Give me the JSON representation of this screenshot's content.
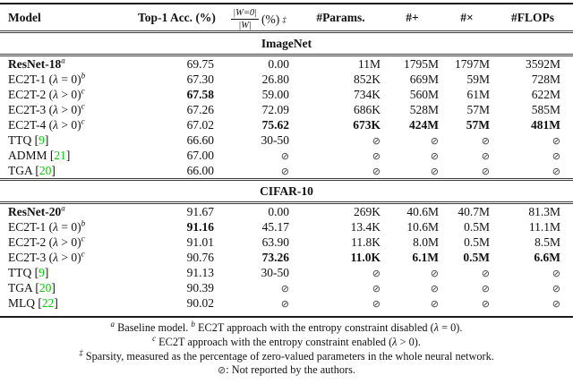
{
  "colors": {
    "citation_green": "#00CC00",
    "text": "#111111"
  },
  "not_reported_symbol": "⊘",
  "header": {
    "columns": [
      {
        "key": "model",
        "segs": [
          {
            "t": "Model",
            "b": 1
          }
        ]
      },
      {
        "key": "top1",
        "segs": [
          {
            "t": "Top-1 Acc.",
            "b": 1
          },
          {
            "t": " (%)"
          }
        ]
      },
      {
        "key": "sparsity",
        "type": "frac",
        "num": "|W=0|",
        "den": "|W|",
        "suffix": "(%)",
        "sup": "‡"
      },
      {
        "key": "params",
        "segs": [
          {
            "t": "#Params.",
            "b": 1
          }
        ]
      },
      {
        "key": "adds",
        "segs": [
          {
            "t": "#+"
          }
        ]
      },
      {
        "key": "mults",
        "segs": [
          {
            "t": "#×"
          }
        ]
      },
      {
        "key": "flops",
        "segs": [
          {
            "t": "#FLOPs",
            "b": 1
          }
        ]
      }
    ]
  },
  "sections": [
    {
      "title": "ImageNet",
      "rows": [
        {
          "model": [
            {
              "t": "ResNet-18",
              "b": 1
            },
            {
              "t": "a",
              "sup": 1
            }
          ],
          "values": [
            {
              "v": "69.75"
            },
            {
              "v": "0.00"
            },
            {
              "v": "11M"
            },
            {
              "v": "1795M"
            },
            {
              "v": "1797M"
            },
            {
              "v": "3592M"
            }
          ]
        },
        {
          "model": [
            {
              "t": "EC2T-1 ("
            },
            {
              "t": "λ",
              "i": 1
            },
            {
              "t": " = 0)"
            },
            {
              "t": "b",
              "sup": 1
            }
          ],
          "values": [
            {
              "v": "67.30"
            },
            {
              "v": "26.80"
            },
            {
              "v": "852K"
            },
            {
              "v": "669M"
            },
            {
              "v": "59M"
            },
            {
              "v": "728M"
            }
          ]
        },
        {
          "model": [
            {
              "t": "EC2T-2 ("
            },
            {
              "t": "λ",
              "i": 1
            },
            {
              "t": " > 0)"
            },
            {
              "t": "c",
              "sup": 1
            }
          ],
          "values": [
            {
              "v": "67.58",
              "b": 1
            },
            {
              "v": "59.00"
            },
            {
              "v": "734K"
            },
            {
              "v": "560M"
            },
            {
              "v": "61M"
            },
            {
              "v": "622M"
            }
          ]
        },
        {
          "model": [
            {
              "t": "EC2T-3 ("
            },
            {
              "t": "λ",
              "i": 1
            },
            {
              "t": " > 0)"
            },
            {
              "t": "c",
              "sup": 1
            }
          ],
          "values": [
            {
              "v": "67.26"
            },
            {
              "v": "72.09"
            },
            {
              "v": "686K"
            },
            {
              "v": "528M"
            },
            {
              "v": "57M"
            },
            {
              "v": "585M"
            }
          ]
        },
        {
          "model": [
            {
              "t": "EC2T-4 ("
            },
            {
              "t": "λ",
              "i": 1
            },
            {
              "t": " > 0)"
            },
            {
              "t": "c",
              "sup": 1
            }
          ],
          "values": [
            {
              "v": "67.02"
            },
            {
              "v": "75.62",
              "b": 1
            },
            {
              "v": "673K",
              "b": 1
            },
            {
              "v": "424M",
              "b": 1
            },
            {
              "v": "57M",
              "b": 1
            },
            {
              "v": "481M",
              "b": 1
            }
          ]
        },
        {
          "model": [
            {
              "t": "TTQ ["
            },
            {
              "t": "9",
              "c": 1
            },
            {
              "t": "]"
            }
          ],
          "values": [
            {
              "v": "66.60"
            },
            {
              "v": "30-50"
            },
            {
              "v": "⊘"
            },
            {
              "v": "⊘"
            },
            {
              "v": "⊘"
            },
            {
              "v": "⊘"
            }
          ]
        },
        {
          "model": [
            {
              "t": "ADMM ["
            },
            {
              "t": "21",
              "c": 1
            },
            {
              "t": "]"
            }
          ],
          "values": [
            {
              "v": "67.00"
            },
            {
              "v": "⊘"
            },
            {
              "v": "⊘"
            },
            {
              "v": "⊘"
            },
            {
              "v": "⊘"
            },
            {
              "v": "⊘"
            }
          ]
        },
        {
          "model": [
            {
              "t": "TGA ["
            },
            {
              "t": "20",
              "c": 1
            },
            {
              "t": "]"
            }
          ],
          "values": [
            {
              "v": "66.00"
            },
            {
              "v": "⊘"
            },
            {
              "v": "⊘"
            },
            {
              "v": "⊘"
            },
            {
              "v": "⊘"
            },
            {
              "v": "⊘"
            }
          ]
        }
      ]
    },
    {
      "title": "CIFAR-10",
      "rows": [
        {
          "model": [
            {
              "t": "ResNet-20",
              "b": 1
            },
            {
              "t": "a",
              "sup": 1
            }
          ],
          "values": [
            {
              "v": "91.67"
            },
            {
              "v": "0.00"
            },
            {
              "v": "269K"
            },
            {
              "v": "40.6M"
            },
            {
              "v": "40.7M"
            },
            {
              "v": "81.3M"
            }
          ]
        },
        {
          "model": [
            {
              "t": "EC2T-1 ("
            },
            {
              "t": "λ",
              "i": 1
            },
            {
              "t": " = 0)"
            },
            {
              "t": "b",
              "sup": 1
            }
          ],
          "values": [
            {
              "v": "91.16",
              "b": 1
            },
            {
              "v": "45.17"
            },
            {
              "v": "13.4K"
            },
            {
              "v": "10.6M"
            },
            {
              "v": "0.5M"
            },
            {
              "v": "11.1M"
            }
          ]
        },
        {
          "model": [
            {
              "t": "EC2T-2 ("
            },
            {
              "t": "λ",
              "i": 1
            },
            {
              "t": " > 0)"
            },
            {
              "t": "c",
              "sup": 1
            }
          ],
          "values": [
            {
              "v": "91.01"
            },
            {
              "v": "63.90"
            },
            {
              "v": "11.8K"
            },
            {
              "v": "8.0M"
            },
            {
              "v": "0.5M"
            },
            {
              "v": "8.5M"
            }
          ]
        },
        {
          "model": [
            {
              "t": "EC2T-3 ("
            },
            {
              "t": "λ",
              "i": 1
            },
            {
              "t": " > 0)"
            },
            {
              "t": "c",
              "sup": 1
            }
          ],
          "values": [
            {
              "v": "90.76"
            },
            {
              "v": "73.26",
              "b": 1
            },
            {
              "v": "11.0K",
              "b": 1
            },
            {
              "v": "6.1M",
              "b": 1
            },
            {
              "v": "0.5M",
              "b": 1
            },
            {
              "v": "6.6M",
              "b": 1
            }
          ]
        },
        {
          "model": [
            {
              "t": "TTQ ["
            },
            {
              "t": "9",
              "c": 1
            },
            {
              "t": "]"
            }
          ],
          "values": [
            {
              "v": "91.13"
            },
            {
              "v": "30-50"
            },
            {
              "v": "⊘"
            },
            {
              "v": "⊘"
            },
            {
              "v": "⊘"
            },
            {
              "v": "⊘"
            }
          ]
        },
        {
          "model": [
            {
              "t": "TGA ["
            },
            {
              "t": "20",
              "c": 1
            },
            {
              "t": "]"
            }
          ],
          "values": [
            {
              "v": "90.39"
            },
            {
              "v": "⊘"
            },
            {
              "v": "⊘"
            },
            {
              "v": "⊘"
            },
            {
              "v": "⊘"
            },
            {
              "v": "⊘"
            }
          ]
        },
        {
          "model": [
            {
              "t": "MLQ ["
            },
            {
              "t": "22",
              "c": 1
            },
            {
              "t": "]"
            }
          ],
          "values": [
            {
              "v": "90.02"
            },
            {
              "v": "⊘"
            },
            {
              "v": "⊘"
            },
            {
              "v": "⊘"
            },
            {
              "v": "⊘"
            },
            {
              "v": "⊘"
            }
          ]
        }
      ]
    }
  ],
  "footnotes": [
    [
      {
        "t": "a",
        "sup": 1
      },
      {
        "t": " Baseline model. "
      },
      {
        "t": "b",
        "sup": 1
      },
      {
        "t": " EC2T approach with the entropy constraint disabled ("
      },
      {
        "t": "λ",
        "i": 1
      },
      {
        "t": " = 0)."
      }
    ],
    [
      {
        "t": "c",
        "sup": 1
      },
      {
        "t": " EC2T approach with the entropy constraint enabled ("
      },
      {
        "t": "λ",
        "i": 1
      },
      {
        "t": " > 0)."
      }
    ],
    [
      {
        "t": "‡",
        "sup": 1
      },
      {
        "t": " Sparsity, measured as the percentage of zero-valued parameters in the whole neural network."
      }
    ],
    [
      {
        "t": "⊘",
        "nil": 1
      },
      {
        "t": ": Not reported by the authors."
      }
    ]
  ]
}
